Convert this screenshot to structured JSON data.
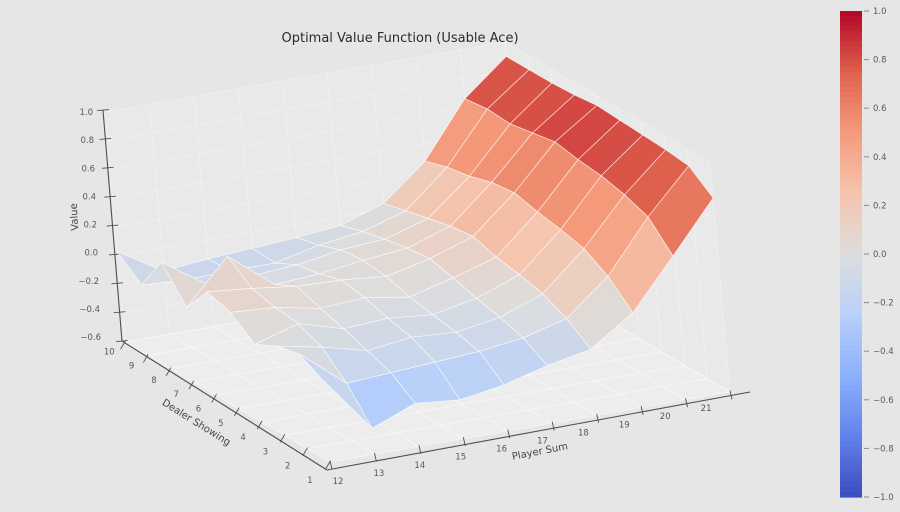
{
  "title": "Optimal Value Function (Usable Ace)",
  "colors": {
    "background": "#e6e6e6",
    "pane_floor": "rgba(255,255,255,0.30)",
    "pane_wall": "rgba(255,255,255,0.12)",
    "grid_line": "rgba(255,255,255,0.65)",
    "axis_line": "#4f4f4f",
    "tick_mark": "#4f4f4f",
    "facet_edge": "rgba(255,255,255,0.75)",
    "colormap_max": "#b40426",
    "colormap_mid": "#dddddd",
    "colormap_min": "#3b4cc0"
  },
  "chart_data": {
    "type": "surface",
    "title": "Optimal Value Function (Usable Ace)",
    "xlabel": "Player Sum",
    "ylabel": "Dealer Showing",
    "zlabel": "Value",
    "x_tick_labels": [
      "12",
      "13",
      "14",
      "15",
      "16",
      "17",
      "18",
      "19",
      "20",
      "21"
    ],
    "y_tick_labels": [
      "1",
      "2",
      "3",
      "4",
      "5",
      "6",
      "7",
      "8",
      "9",
      "10"
    ],
    "z_tick_labels": [
      "1.0",
      "0.8",
      "0.6",
      "0.4",
      "0.2",
      "0.0",
      "−0.2",
      "−0.4",
      "−0.6"
    ],
    "z_tick_values": [
      1.0,
      0.8,
      0.6,
      0.4,
      0.2,
      0.0,
      -0.2,
      -0.4,
      -0.6
    ],
    "zlim": [
      -0.6,
      1.0
    ],
    "grid": true,
    "legend_position": "colorbar-right",
    "colormap": {
      "name": "coolwarm",
      "vmin": -1.0,
      "vmax": 1.0,
      "stops": [
        [
          0.0,
          "#3b4cc0"
        ],
        [
          0.125,
          "#6282ea"
        ],
        [
          0.25,
          "#8db0fe"
        ],
        [
          0.375,
          "#b8d0f9"
        ],
        [
          0.5,
          "#dddddd"
        ],
        [
          0.625,
          "#f5c4ad"
        ],
        [
          0.75,
          "#f49a7b"
        ],
        [
          0.875,
          "#de614d"
        ],
        [
          1.0,
          "#b40426"
        ]
      ]
    },
    "colorbar": {
      "tick_labels": [
        "1.0",
        "0.8",
        "0.6",
        "0.4",
        "0.2",
        "0.0",
        "−0.2",
        "−0.4",
        "−0.6",
        "−0.8",
        "−1.0"
      ],
      "tick_values": [
        1.0,
        0.8,
        0.6,
        0.4,
        0.2,
        0.0,
        -0.2,
        -0.4,
        -0.6,
        -0.8,
        -1.0
      ]
    },
    "values_rows": "dealer_showing 1 to 10 (front to back)",
    "values_cols": "player_sum 12 to 21 (left to right)",
    "values": [
      [
        -0.03,
        -0.42,
        -0.3,
        -0.33,
        -0.28,
        -0.2,
        -0.14,
        0.06,
        0.4,
        0.75
      ],
      [
        0.06,
        -0.2,
        -0.18,
        -0.16,
        -0.14,
        -0.1,
        -0.02,
        0.22,
        0.58,
        0.88
      ],
      [
        0.02,
        -0.04,
        -0.12,
        -0.08,
        -0.1,
        -0.05,
        0.06,
        0.32,
        0.64,
        0.9
      ],
      [
        -0.06,
        0.03,
        -0.06,
        -0.04,
        -0.07,
        -0.01,
        0.1,
        0.36,
        0.68,
        0.91
      ],
      [
        0.07,
        0.05,
        -0.01,
        0.01,
        -0.04,
        0.04,
        0.13,
        0.39,
        0.7,
        0.92
      ],
      [
        0.12,
        0.09,
        0.05,
        0.04,
        0.01,
        0.08,
        0.18,
        0.43,
        0.73,
        0.93
      ],
      [
        -0.08,
        0.22,
        -0.03,
        -0.01,
        0.03,
        0.06,
        0.16,
        0.41,
        0.7,
        0.91
      ],
      [
        0.14,
        -0.07,
        -0.06,
        -0.04,
        0.01,
        0.03,
        0.12,
        0.36,
        0.67,
        0.9
      ],
      [
        -0.11,
        -0.13,
        -0.12,
        -0.12,
        -0.05,
        -0.01,
        0.08,
        0.33,
        0.68,
        0.9
      ],
      [
        0.03,
        -0.16,
        -0.13,
        -0.11,
        -0.09,
        -0.06,
        0.04,
        0.28,
        0.66,
        0.9
      ]
    ]
  }
}
